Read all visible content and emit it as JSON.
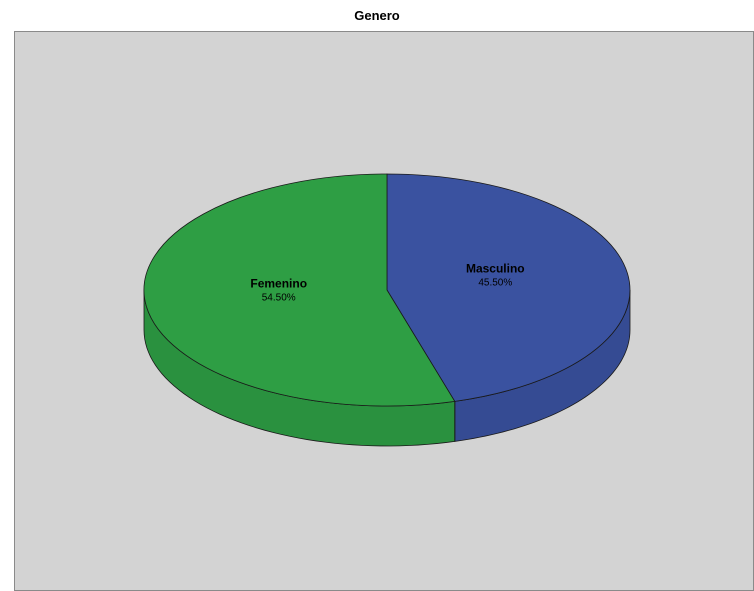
{
  "chart_data": {
    "type": "pie",
    "title": "Genero",
    "slices": [
      {
        "label": "Femenino",
        "value": 54.5,
        "value_label": "54.50%",
        "color": "#2e9e44"
      },
      {
        "label": "Masculino",
        "value": 45.5,
        "value_label": "45.50%",
        "color": "#3a52a0"
      }
    ],
    "three_d": true,
    "legend": "none",
    "background_color": "#d3d3d3"
  }
}
